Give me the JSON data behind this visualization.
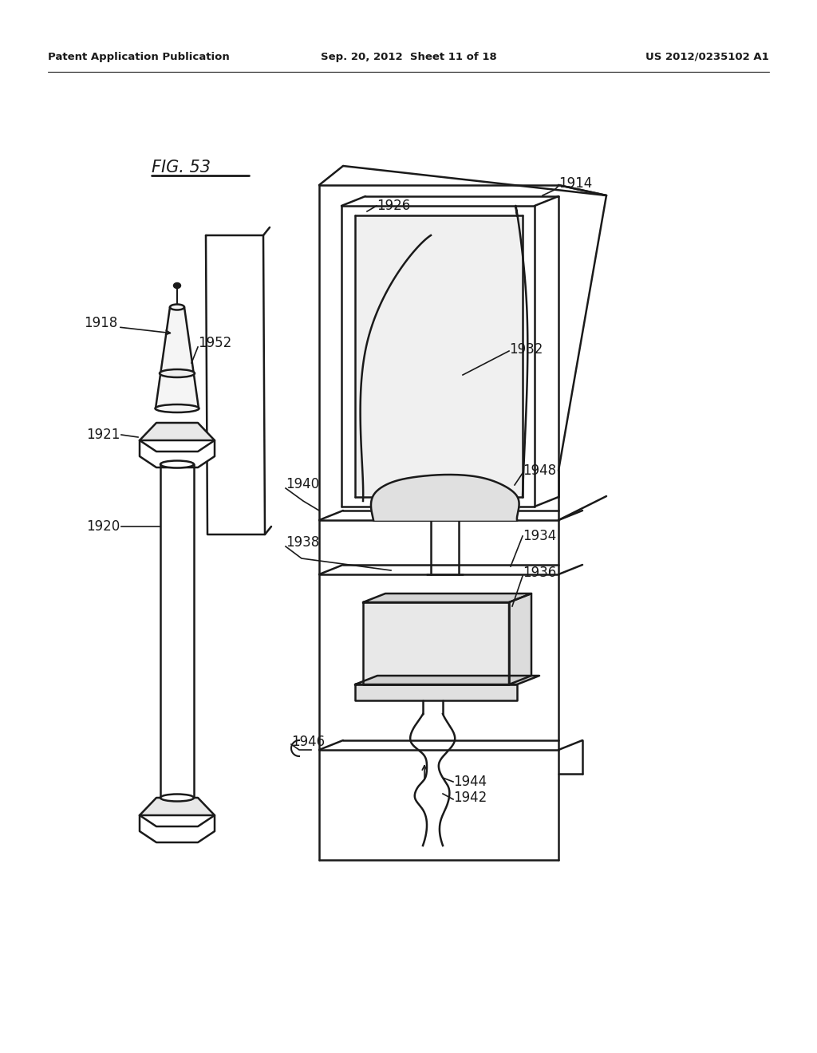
{
  "background_color": "#ffffff",
  "header_left": "Patent Application Publication",
  "header_center": "Sep. 20, 2012  Sheet 11 of 18",
  "header_right": "US 2012/0235102 A1",
  "figure_label": "FIG. 53"
}
